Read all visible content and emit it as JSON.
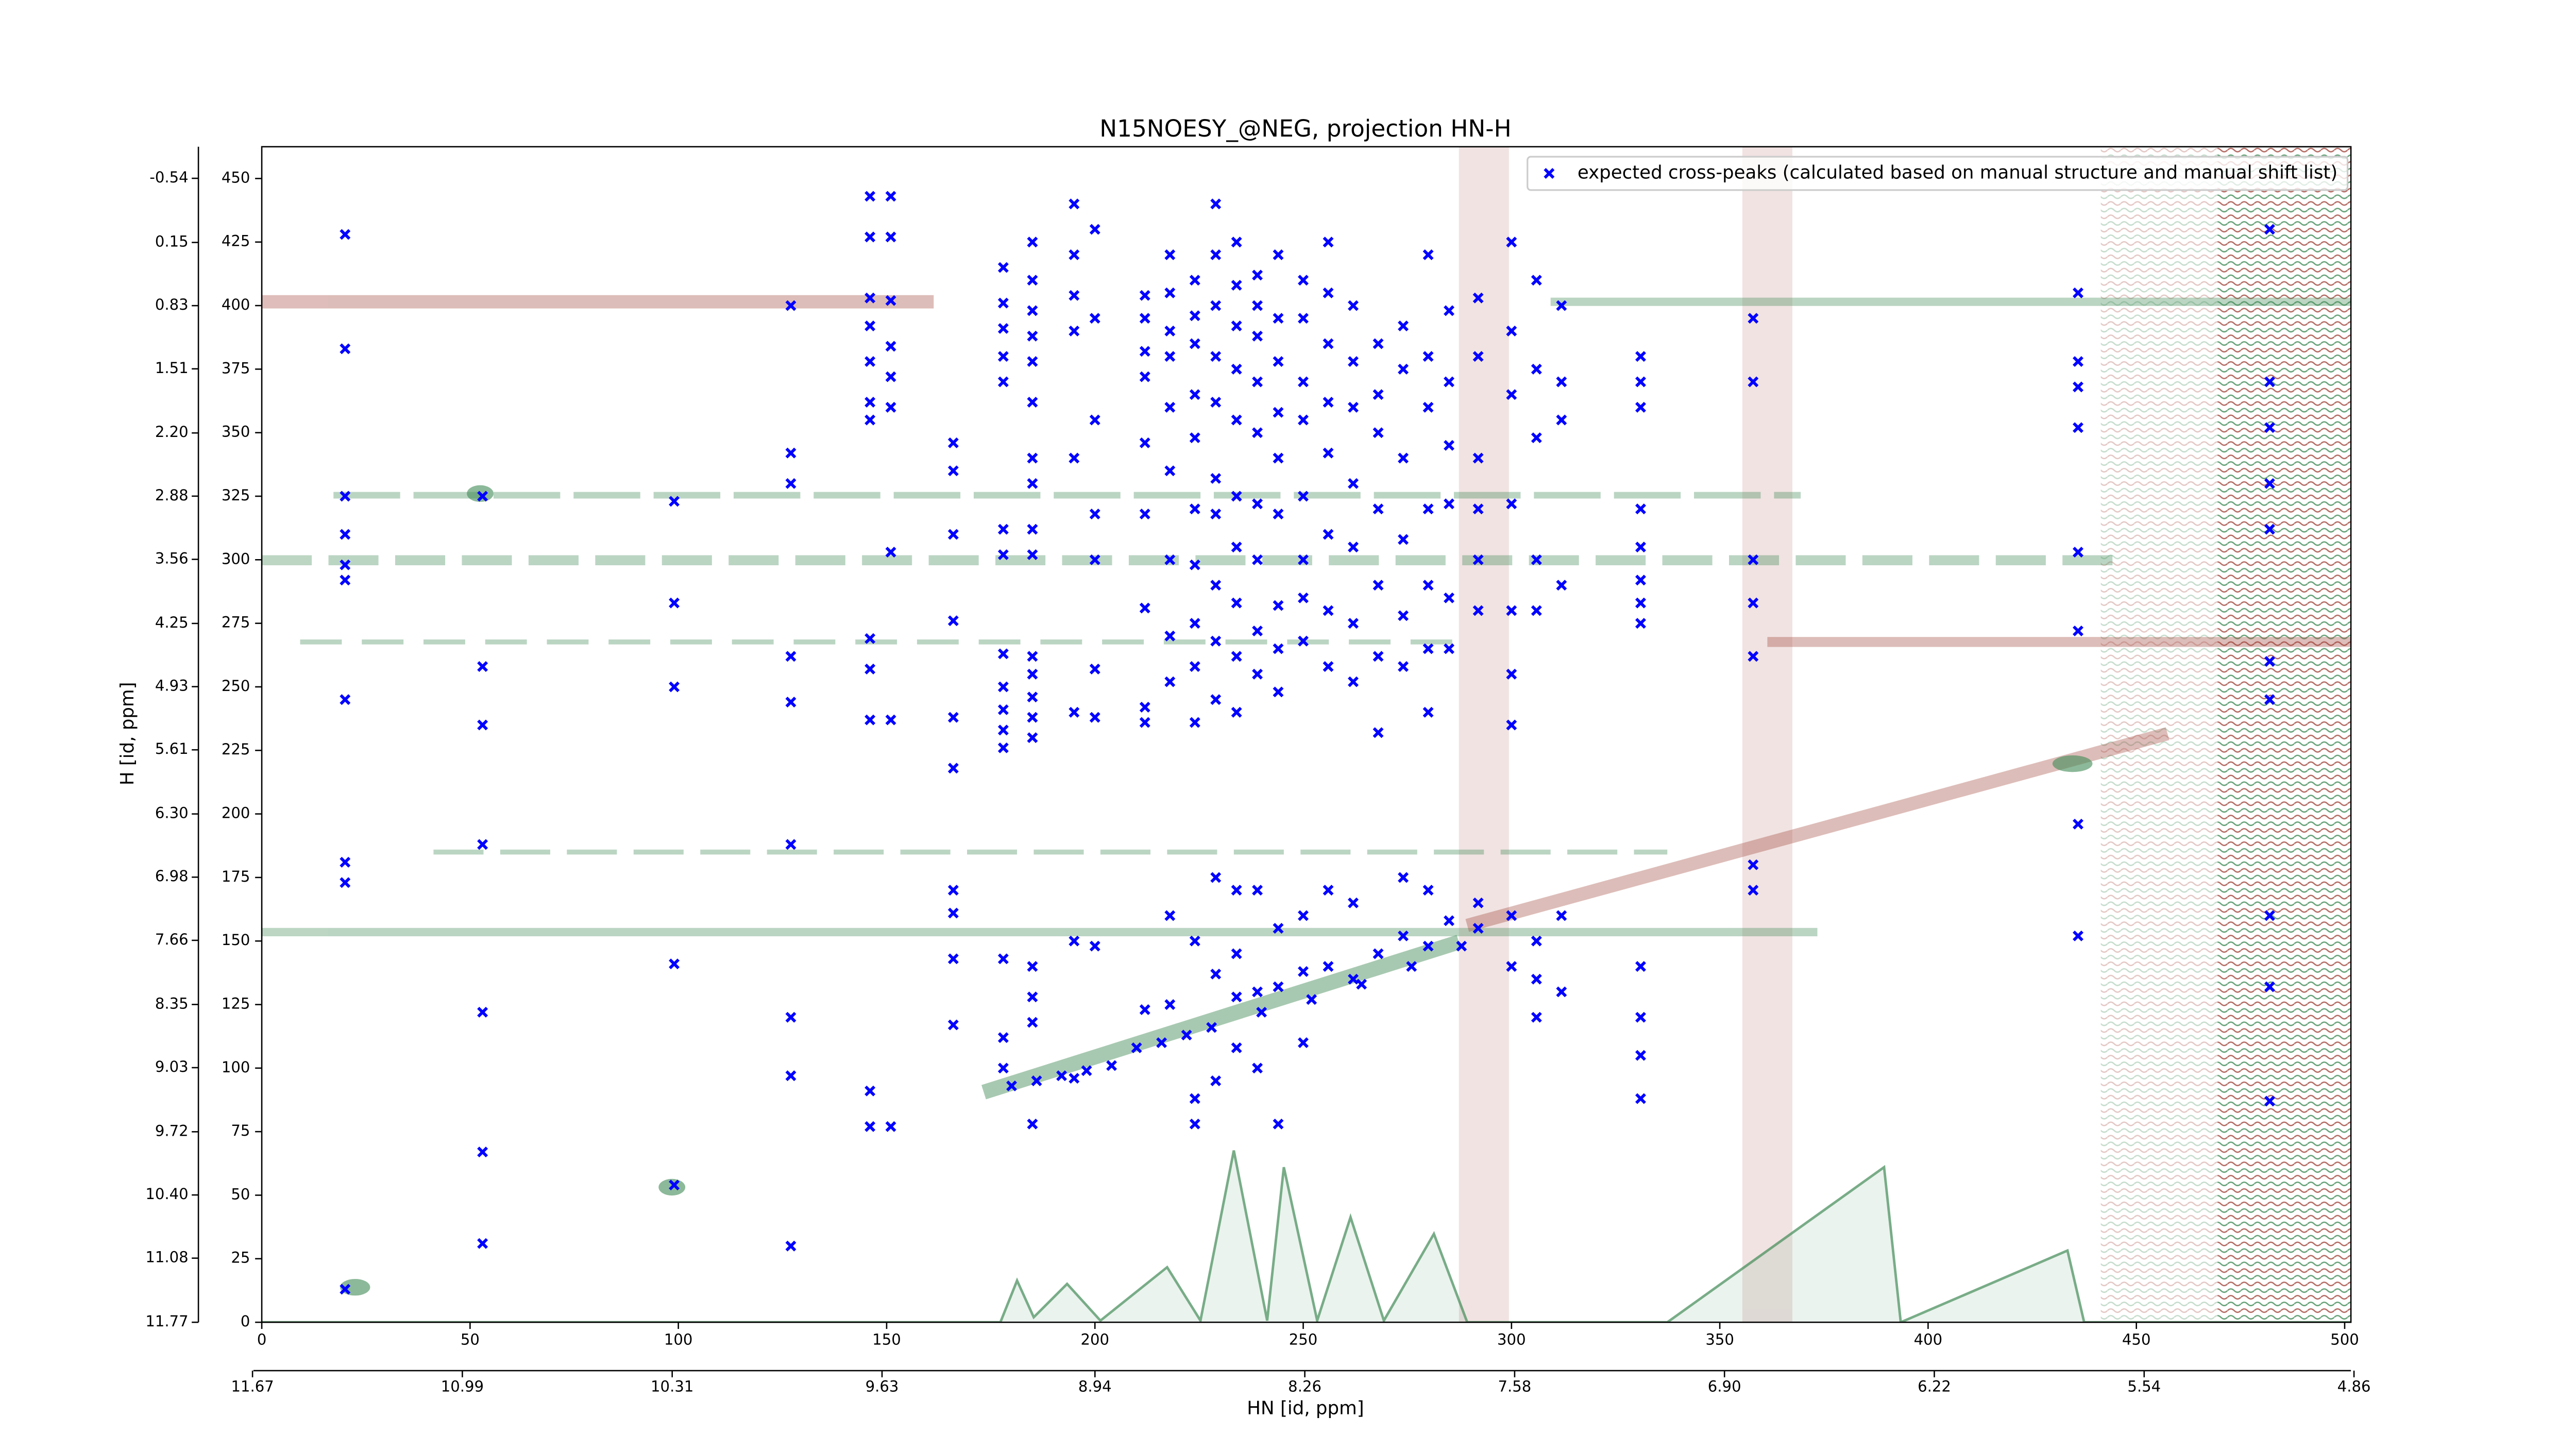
{
  "chart_data": {
    "type": "scatter",
    "title": "N15NOESY_@NEG, projection HN-H",
    "xlabel": "HN [id, ppm]",
    "ylabel": "H [id, ppm]",
    "xlim": [
      0,
      501.5
    ],
    "xticks": [
      0,
      50,
      100,
      150,
      200,
      250,
      300,
      350,
      400,
      450,
      500
    ],
    "x2lim": [
      11.64,
      4.87
    ],
    "x2ticks": [
      11.67,
      10.99,
      10.31,
      9.63,
      8.94,
      8.26,
      7.58,
      {
        "value": 6.9,
        "label": "6.90"
      },
      6.22,
      5.54,
      4.86
    ],
    "ylim": [
      0,
      462.5
    ],
    "yticks": [
      0,
      25,
      50,
      75,
      100,
      125,
      150,
      175,
      200,
      225,
      250,
      275,
      300,
      325,
      350,
      375,
      400,
      425,
      450
    ],
    "y2lim": [
      11.77,
      -0.88
    ],
    "y2ticks": [
      -0.54,
      0.15,
      0.83,
      1.51,
      {
        "value": 2.2,
        "label": "2.20"
      },
      2.88,
      3.56,
      4.25,
      4.93,
      5.61,
      {
        "value": 6.3,
        "label": "6.30"
      },
      6.98,
      7.66,
      8.35,
      9.03,
      9.72,
      {
        "value": 10.4,
        "label": "10.40"
      },
      11.08,
      11.77
    ],
    "legend": "upper right",
    "series": [
      {
        "name": "expected cross-peaks (calculated based on manual structure and manual shift list)",
        "color": "#0000ff",
        "x": [
          20,
          20,
          20,
          20,
          20,
          20,
          20,
          20,
          20,
          20,
          53,
          53,
          53,
          53,
          53,
          53,
          53,
          99,
          99,
          99,
          99,
          99,
          127,
          127,
          127,
          127,
          127,
          127,
          127,
          127,
          127,
          146,
          146,
          146,
          146,
          146,
          146,
          146,
          146,
          146,
          146,
          146,
          146,
          151,
          151,
          151,
          151,
          151,
          151,
          151,
          151,
          151,
          166,
          166,
          166,
          166,
          166,
          166,
          166,
          166,
          166,
          166,
          178,
          178,
          178,
          178,
          178,
          178,
          178,
          178,
          178,
          178,
          178,
          178,
          178,
          178,
          178,
          185,
          185,
          185,
          185,
          185,
          185,
          185,
          185,
          185,
          185,
          185,
          185,
          185,
          185,
          185,
          185,
          185,
          185,
          185,
          195,
          195,
          195,
          195,
          195,
          195,
          195,
          195,
          200,
          200,
          200,
          200,
          200,
          200,
          200,
          200,
          212,
          212,
          212,
          212,
          212,
          212,
          212,
          212,
          212,
          212,
          218,
          218,
          218,
          218,
          218,
          218,
          218,
          218,
          218,
          218,
          218,
          224,
          224,
          224,
          224,
          224,
          224,
          224,
          224,
          224,
          224,
          224,
          224,
          224,
          229,
          229,
          229,
          229,
          229,
          229,
          229,
          229,
          229,
          229,
          229,
          229,
          229,
          234,
          234,
          234,
          234,
          234,
          234,
          234,
          234,
          234,
          234,
          234,
          234,
          234,
          234,
          239,
          239,
          239,
          239,
          239,
          239,
          239,
          239,
          239,
          239,
          239,
          239,
          244,
          244,
          244,
          244,
          244,
          244,
          244,
          244,
          244,
          244,
          244,
          244,
          250,
          250,
          250,
          250,
          250,
          250,
          250,
          250,
          250,
          250,
          250,
          256,
          256,
          256,
          256,
          256,
          256,
          256,
          256,
          256,
          256,
          262,
          262,
          262,
          262,
          262,
          262,
          262,
          262,
          262,
          268,
          268,
          268,
          268,
          268,
          268,
          268,
          268,
          274,
          274,
          274,
          274,
          274,
          274,
          274,
          274,
          280,
          280,
          280,
          280,
          280,
          280,
          280,
          280,
          280,
          285,
          285,
          285,
          285,
          285,
          285,
          285,
          292,
          292,
          292,
          292,
          292,
          292,
          292,
          292,
          300,
          300,
          300,
          300,
          300,
          300,
          300,
          300,
          300,
          306,
          306,
          306,
          306,
          306,
          306,
          306,
          306,
          312,
          312,
          312,
          312,
          312,
          312,
          331,
          331,
          331,
          331,
          331,
          331,
          331,
          331,
          331,
          331,
          331,
          331,
          358,
          358,
          358,
          358,
          358,
          358,
          358,
          436,
          436,
          436,
          436,
          436,
          436,
          436,
          436,
          482,
          482,
          482,
          482,
          482,
          482,
          482,
          482,
          482,
          482,
          180,
          186,
          192,
          198,
          204,
          210,
          216,
          222,
          228,
          240,
          252,
          264,
          276,
          288
        ],
        "values": [
          428,
          383,
          325,
          310,
          298,
          292,
          245,
          181,
          173,
          13,
          325,
          258,
          235,
          188,
          122,
          67,
          31,
          323,
          283,
          250,
          141,
          54,
          400,
          342,
          330,
          262,
          244,
          188,
          120,
          97,
          30,
          443,
          427,
          403,
          392,
          378,
          362,
          355,
          269,
          257,
          237,
          91,
          77,
          443,
          427,
          402,
          384,
          372,
          360,
          303,
          237,
          77,
          346,
          335,
          310,
          276,
          238,
          218,
          170,
          161,
          143,
          117,
          415,
          401,
          391,
          380,
          370,
          312,
          302,
          263,
          250,
          241,
          233,
          226,
          143,
          112,
          100,
          425,
          410,
          398,
          388,
          378,
          362,
          340,
          330,
          312,
          302,
          262,
          255,
          246,
          238,
          230,
          140,
          128,
          118,
          78,
          440,
          420,
          404,
          390,
          340,
          240,
          150,
          96,
          430,
          395,
          355,
          318,
          300,
          257,
          238,
          148,
          404,
          395,
          382,
          372,
          346,
          318,
          281,
          242,
          236,
          123,
          420,
          405,
          390,
          380,
          360,
          335,
          300,
          270,
          252,
          160,
          125,
          410,
          396,
          385,
          365,
          348,
          320,
          298,
          275,
          258,
          236,
          150,
          88,
          78,
          440,
          420,
          400,
          380,
          362,
          332,
          318,
          290,
          268,
          245,
          175,
          137,
          95,
          425,
          408,
          392,
          375,
          355,
          325,
          305,
          283,
          262,
          240,
          170,
          145,
          128,
          108,
          412,
          400,
          388,
          370,
          350,
          322,
          300,
          272,
          255,
          170,
          130,
          100,
          420,
          395,
          378,
          358,
          340,
          318,
          282,
          265,
          248,
          155,
          132,
          78,
          410,
          395,
          370,
          355,
          325,
          300,
          285,
          268,
          160,
          138,
          110,
          425,
          405,
          385,
          362,
          342,
          310,
          280,
          258,
          170,
          140,
          400,
          378,
          360,
          330,
          305,
          275,
          252,
          165,
          135,
          385,
          365,
          350,
          320,
          290,
          262,
          232,
          145,
          392,
          375,
          340,
          308,
          278,
          258,
          175,
          152,
          420,
          380,
          360,
          320,
          290,
          265,
          240,
          170,
          148,
          398,
          370,
          345,
          322,
          285,
          265,
          158,
          403,
          380,
          340,
          320,
          300,
          280,
          165,
          155,
          425,
          390,
          365,
          322,
          280,
          255,
          235,
          160,
          140,
          410,
          375,
          348,
          300,
          280,
          150,
          135,
          120,
          400,
          370,
          355,
          290,
          160,
          130,
          380,
          370,
          360,
          320,
          305,
          292,
          283,
          275,
          140,
          120,
          105,
          88,
          395,
          370,
          300,
          283,
          262,
          180,
          170,
          405,
          378,
          368,
          352,
          303,
          272,
          196,
          152,
          430,
          370,
          352,
          330,
          312,
          260,
          245,
          160,
          132,
          87,
          93,
          95,
          97,
          99,
          101,
          108,
          110,
          113,
          116,
          122,
          127,
          133,
          140,
          148
        ]
      }
    ]
  }
}
